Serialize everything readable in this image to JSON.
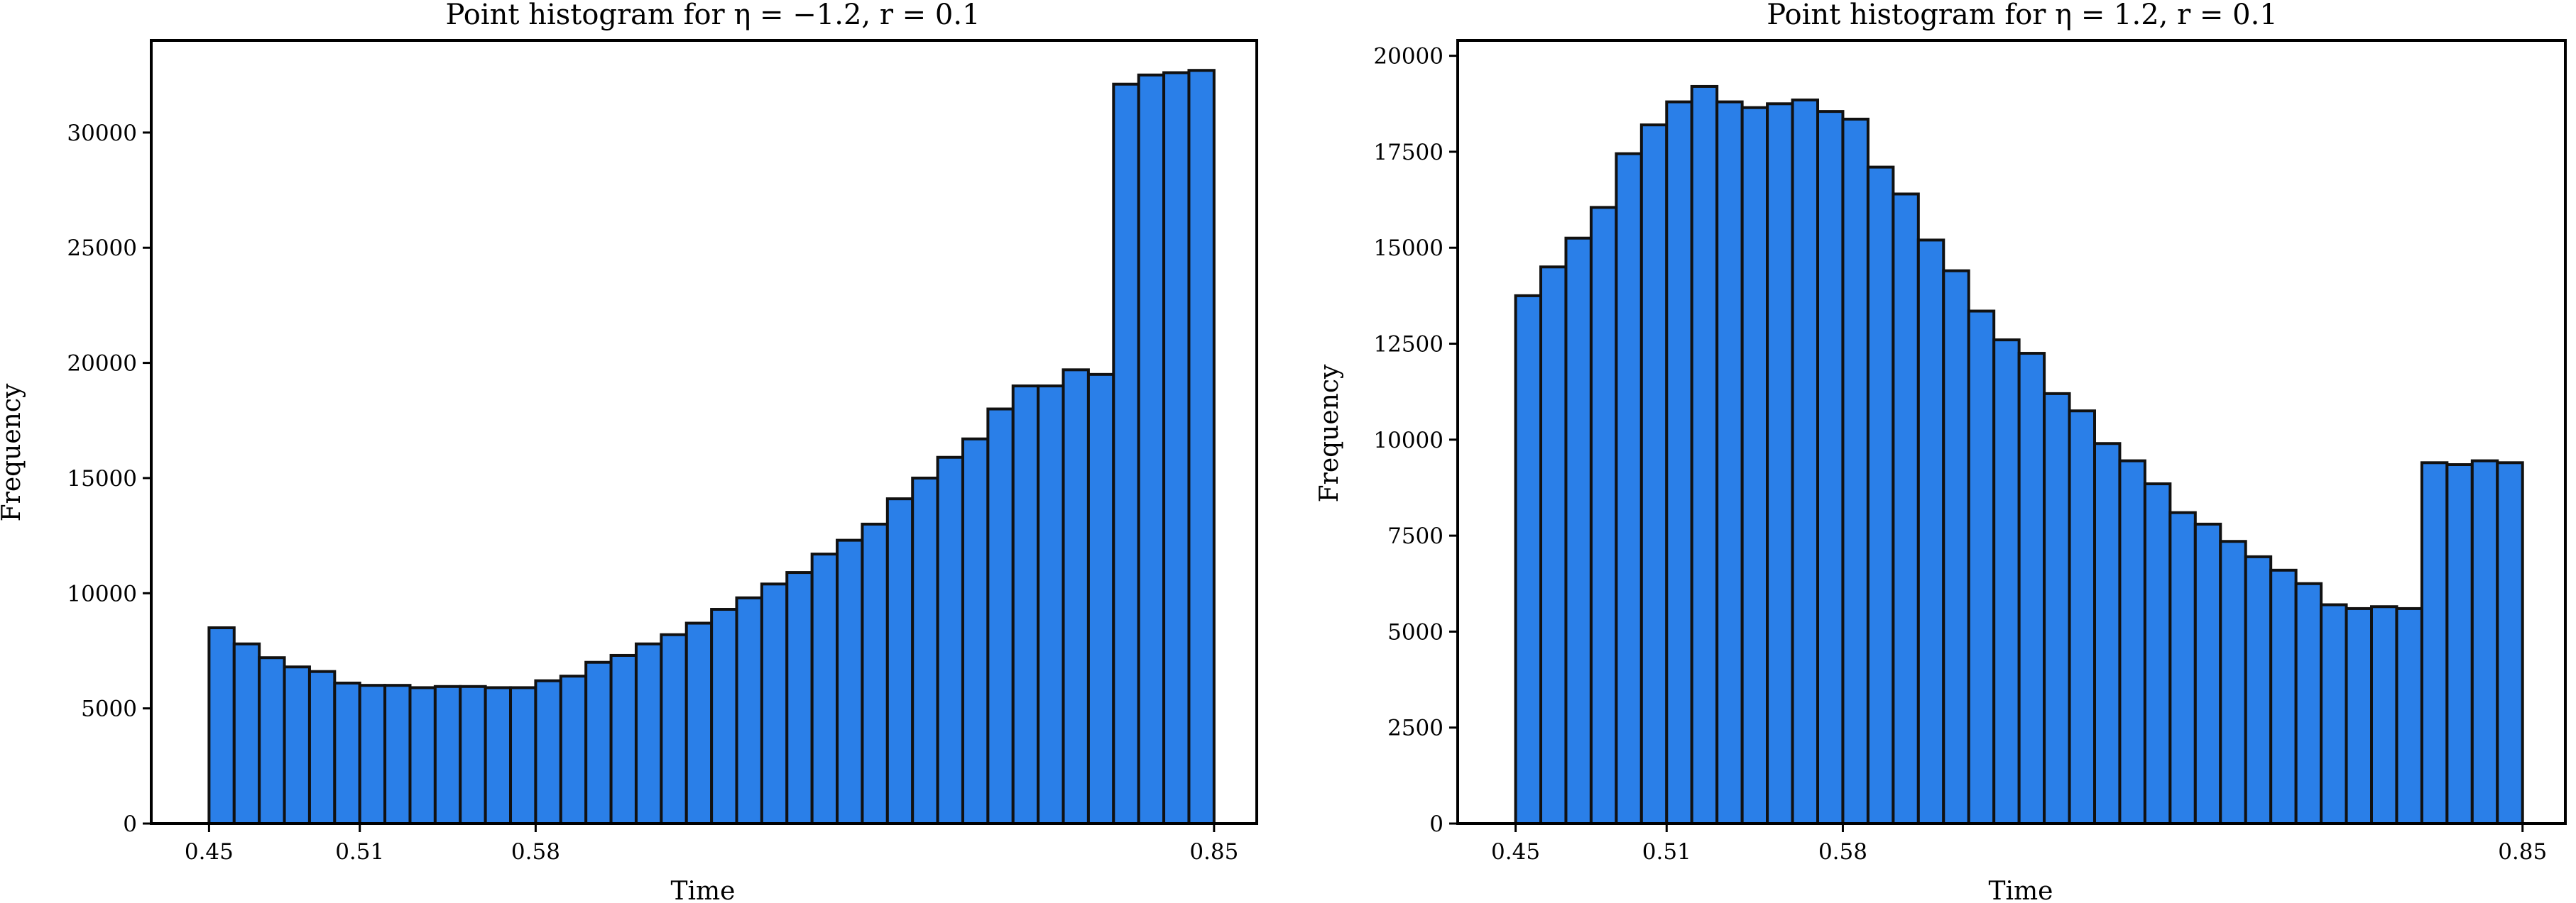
{
  "chart_data": [
    {
      "type": "bar",
      "title": "Point histogram for η = −1.2, r = 0.1",
      "xlabel": "Time",
      "ylabel": "Frequency",
      "xlim": [
        0.427,
        0.867
      ],
      "ylim": [
        0,
        34000
      ],
      "bin_start": 0.45,
      "bin_end": 0.85,
      "xticks": [
        0.45,
        0.51,
        0.58,
        0.85
      ],
      "xtick_labels": [
        "0.45",
        "0.51",
        "0.58",
        "0.85"
      ],
      "yticks": [
        0,
        5000,
        10000,
        15000,
        20000,
        25000,
        30000
      ],
      "ytick_labels": [
        "0",
        "5000",
        "10000",
        "15000",
        "20000",
        "25000",
        "30000"
      ],
      "grid": false,
      "values": [
        8500,
        7800,
        7200,
        6800,
        6600,
        6100,
        6000,
        6000,
        5900,
        5950,
        5950,
        5900,
        5900,
        6200,
        6400,
        7000,
        7300,
        7800,
        8200,
        8700,
        9300,
        9800,
        10400,
        10900,
        11700,
        12300,
        13000,
        14100,
        15000,
        15900,
        16700,
        18000,
        19000,
        19000,
        19700,
        19500,
        32100,
        32500,
        32600,
        32700
      ],
      "color": "#2a7fe8"
    },
    {
      "type": "bar",
      "title": "Point histogram for η = 1.2, r = 0.1",
      "xlabel": "Time",
      "ylabel": "Frequency",
      "xlim": [
        0.427,
        0.867
      ],
      "ylim": [
        0,
        20400
      ],
      "bin_start": 0.45,
      "bin_end": 0.85,
      "xticks": [
        0.45,
        0.51,
        0.58,
        0.85
      ],
      "xtick_labels": [
        "0.45",
        "0.51",
        "0.58",
        "0.85"
      ],
      "yticks": [
        0,
        2500,
        5000,
        7500,
        10000,
        12500,
        15000,
        17500,
        20000
      ],
      "ytick_labels": [
        "0",
        "2500",
        "5000",
        "7500",
        "10000",
        "12500",
        "15000",
        "17500",
        "20000"
      ],
      "grid": false,
      "values": [
        13750,
        14500,
        15250,
        16050,
        17450,
        18200,
        18800,
        19200,
        18800,
        18650,
        18750,
        18850,
        18550,
        18350,
        17100,
        16400,
        15200,
        14400,
        13350,
        12600,
        12250,
        11200,
        10750,
        9900,
        9450,
        8850,
        8100,
        7800,
        7350,
        6950,
        6600,
        6250,
        5700,
        5600,
        5650,
        5600,
        9400,
        9350,
        9450,
        9400
      ],
      "color": "#2a7fe8"
    }
  ]
}
